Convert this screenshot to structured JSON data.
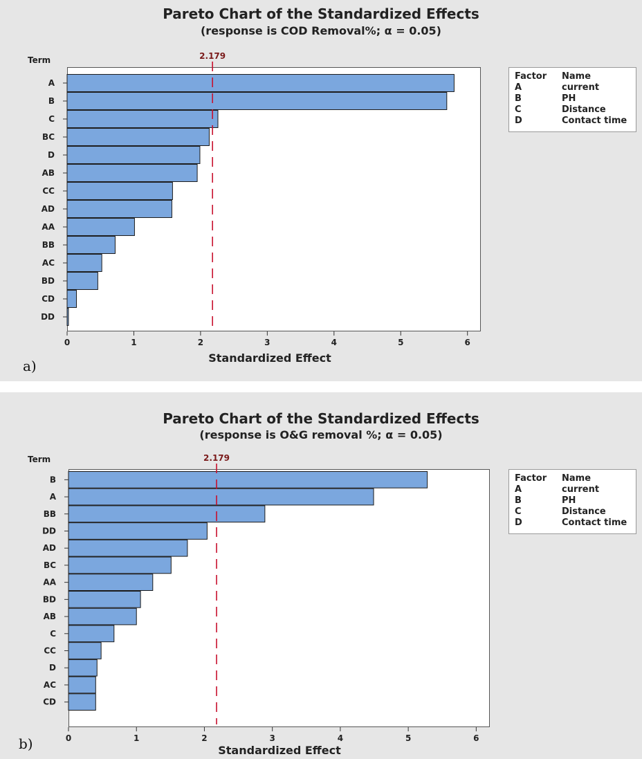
{
  "chart_data": [
    {
      "type": "bar",
      "orientation": "horizontal",
      "title": "Pareto Chart of the Standardized Effects",
      "subtitle": "(response is COD Removal%; α = 0.05)",
      "ylabel": "Term",
      "xlabel": "Standardized Effect",
      "panel_label": "a)",
      "categories": [
        "A",
        "B",
        "C",
        "BC",
        "D",
        "AB",
        "CC",
        "AD",
        "AA",
        "BB",
        "AC",
        "BD",
        "CD",
        "DD"
      ],
      "values": [
        5.8,
        5.69,
        2.26,
        2.13,
        1.99,
        1.95,
        1.58,
        1.57,
        1.01,
        0.72,
        0.52,
        0.46,
        0.14,
        0.02
      ],
      "xlim": [
        0,
        6.2
      ],
      "xticks": [
        0,
        1,
        2,
        3,
        4,
        5,
        6
      ],
      "reference_line": {
        "value": 2.179,
        "label": "2.179"
      },
      "bar_color": "#7ba7de",
      "ref_color": "#c8102e",
      "legend": {
        "header": [
          "Factor",
          "Name"
        ],
        "entries": [
          [
            "A",
            "current"
          ],
          [
            "B",
            "PH"
          ],
          [
            "C",
            "Distance"
          ],
          [
            "D",
            "Contact time"
          ]
        ]
      }
    },
    {
      "type": "bar",
      "orientation": "horizontal",
      "title": "Pareto Chart of the Standardized Effects",
      "subtitle": "(response is O&G removal %; α = 0.05)",
      "ylabel": "Term",
      "xlabel": "Standardized Effect",
      "panel_label": "b)",
      "categories": [
        "B",
        "A",
        "BB",
        "DD",
        "AD",
        "BC",
        "AA",
        "BD",
        "AB",
        "C",
        "CC",
        "D",
        "AC",
        "CD"
      ],
      "values": [
        5.28,
        4.49,
        2.89,
        2.04,
        1.75,
        1.51,
        1.24,
        1.06,
        1.0,
        0.67,
        0.48,
        0.42,
        0.4,
        0.4
      ],
      "xlim": [
        0,
        6.2
      ],
      "xticks": [
        0,
        1,
        2,
        3,
        4,
        5,
        6
      ],
      "reference_line": {
        "value": 2.179,
        "label": "2.179"
      },
      "bar_color": "#7ba7de",
      "ref_color": "#c8102e",
      "legend": {
        "header": [
          "Factor",
          "Name"
        ],
        "entries": [
          [
            "A",
            "current"
          ],
          [
            "B",
            "PH"
          ],
          [
            "C",
            "Distance"
          ],
          [
            "D",
            "Contact time"
          ]
        ]
      }
    }
  ]
}
